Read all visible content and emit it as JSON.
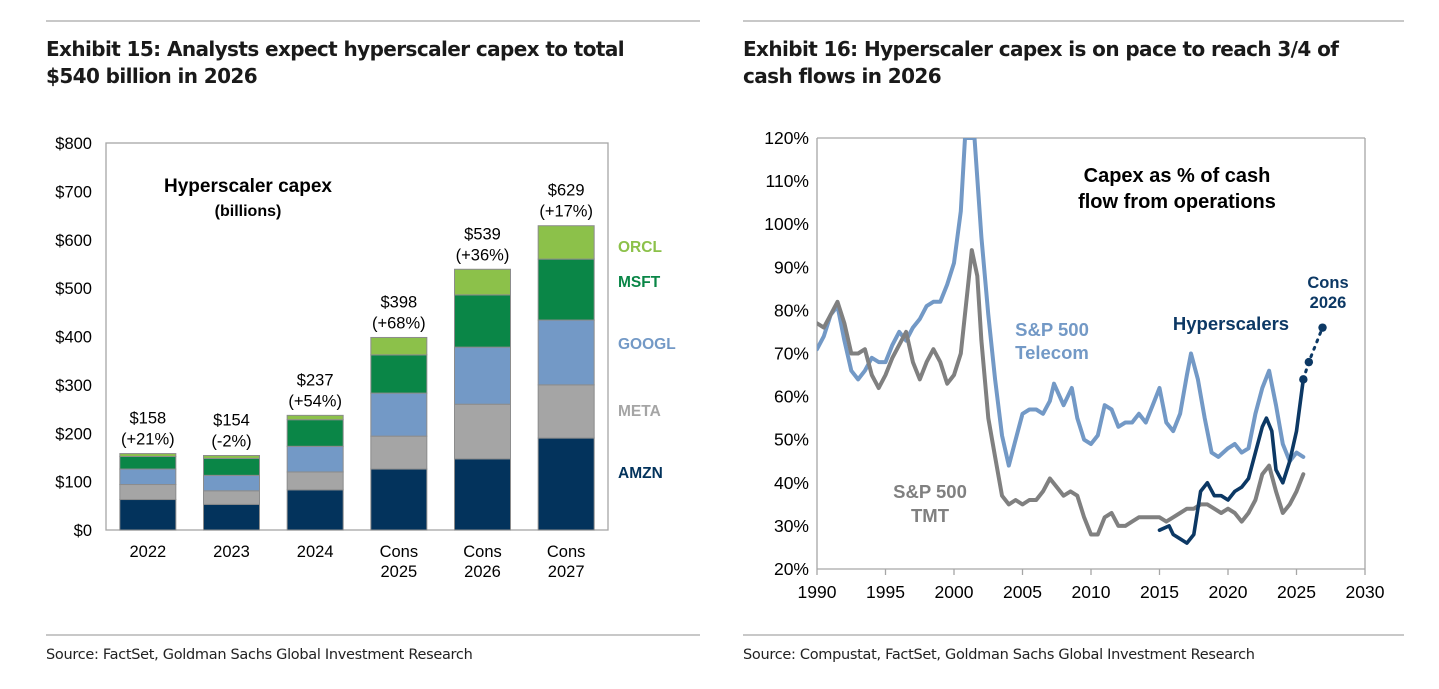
{
  "exhibits": [
    {
      "title_line1": "Exhibit 15: Analysts expect hyperscaler capex to total",
      "title_line2": "$540 billion in 2026",
      "source": "Source: FactSet, Goldman Sachs Global Investment Research"
    },
    {
      "title_line1": "Exhibit 16: Hyperscaler capex is on pace to reach 3/4 of",
      "title_line2": "cash flows in 2026",
      "source": "Source: Compustat, FactSet, Goldman Sachs Global Investment Research"
    }
  ],
  "chart_data": [
    {
      "type": "bar",
      "stacked": true,
      "title": "Hyperscaler capex",
      "subtitle": "(billions)",
      "xlabel": "",
      "ylabel": "",
      "ylim": [
        0,
        800
      ],
      "y_ticks": [
        0,
        100,
        200,
        300,
        400,
        500,
        600,
        700,
        800
      ],
      "y_tick_labels": [
        "$0",
        "$100",
        "$200",
        "$300",
        "$400",
        "$500",
        "$600",
        "$700",
        "$800"
      ],
      "categories": [
        [
          "2022"
        ],
        [
          "2023"
        ],
        [
          "2024"
        ],
        [
          "Cons",
          "2025"
        ],
        [
          "Cons",
          "2026"
        ],
        [
          "Cons",
          "2027"
        ]
      ],
      "series": [
        {
          "name": "AMZN",
          "color": "#03335c",
          "values": [
            63,
            53,
            83,
            126,
            147,
            190
          ]
        },
        {
          "name": "META",
          "color": "#a5a5a5",
          "values": [
            31,
            28,
            37,
            68,
            113,
            110
          ]
        },
        {
          "name": "GOOGL",
          "color": "#7399c6",
          "values": [
            32,
            32,
            53,
            89,
            118,
            134
          ]
        },
        {
          "name": "MSFT",
          "color": "#0a8647",
          "values": [
            26,
            35,
            55,
            79,
            108,
            126
          ]
        },
        {
          "name": "ORCL",
          "color": "#8cc14a",
          "values": [
            6,
            6,
            9,
            36,
            53,
            69
          ]
        }
      ],
      "totals": [
        158,
        154,
        237,
        398,
        539,
        629
      ],
      "total_labels": [
        "$158",
        "$154",
        "$237",
        "$398",
        "$539",
        "$629"
      ],
      "growth_labels": [
        "(+21%)",
        "(-2%)",
        "(+54%)",
        "(+68%)",
        "(+36%)",
        "(+17%)"
      ],
      "legend": [
        "ORCL",
        "MSFT",
        "GOOGL",
        "META",
        "AMZN"
      ],
      "legend_placement": "right",
      "grid": false
    },
    {
      "type": "line",
      "title": "Capex as % of cash",
      "title_line2": "flow from operations",
      "xlabel": "",
      "ylabel": "",
      "xlim": [
        1990,
        2030
      ],
      "ylim": [
        20,
        120
      ],
      "x_ticks": [
        1990,
        1995,
        2000,
        2005,
        2010,
        2015,
        2020,
        2025,
        2030
      ],
      "y_ticks": [
        20,
        30,
        40,
        50,
        60,
        70,
        80,
        90,
        100,
        110,
        120
      ],
      "y_tick_labels": [
        "20%",
        "30%",
        "40%",
        "50%",
        "60%",
        "70%",
        "80%",
        "90%",
        "100%",
        "110%",
        "120%"
      ],
      "grid": false,
      "series": [
        {
          "name": "S&P 500 Telecom",
          "label_line1": "S&P 500",
          "label_line2": "Telecom",
          "color": "#7399c6",
          "points": [
            [
              1990,
              71
            ],
            [
              1990.5,
              74
            ],
            [
              1991,
              79
            ],
            [
              1991.5,
              81
            ],
            [
              1992,
              73
            ],
            [
              1992.5,
              66
            ],
            [
              1993,
              64
            ],
            [
              1993.5,
              66
            ],
            [
              1994,
              69
            ],
            [
              1994.5,
              68
            ],
            [
              1995,
              68
            ],
            [
              1995.5,
              72
            ],
            [
              1996,
              75
            ],
            [
              1996.5,
              73
            ],
            [
              1997,
              76
            ],
            [
              1997.5,
              78
            ],
            [
              1998,
              81
            ],
            [
              1998.5,
              82
            ],
            [
              1999,
              82
            ],
            [
              1999.5,
              86
            ],
            [
              2000,
              91
            ],
            [
              2000.5,
              103
            ],
            [
              2000.8,
              120
            ],
            [
              2001.5,
              120
            ],
            [
              2002,
              97
            ],
            [
              2002.5,
              79
            ],
            [
              2003,
              64
            ],
            [
              2003.5,
              51
            ],
            [
              2004,
              44
            ],
            [
              2004.5,
              50
            ],
            [
              2005,
              56
            ],
            [
              2005.5,
              57
            ],
            [
              2006,
              57
            ],
            [
              2006.5,
              56
            ],
            [
              2007,
              59
            ],
            [
              2007.3,
              63
            ],
            [
              2008,
              58
            ],
            [
              2008.6,
              62
            ],
            [
              2009,
              55
            ],
            [
              2009.5,
              50
            ],
            [
              2010,
              49
            ],
            [
              2010.5,
              51
            ],
            [
              2011,
              58
            ],
            [
              2011.5,
              57
            ],
            [
              2012,
              53
            ],
            [
              2012.5,
              54
            ],
            [
              2013,
              54
            ],
            [
              2013.5,
              56
            ],
            [
              2014,
              54
            ],
            [
              2014.5,
              58
            ],
            [
              2015,
              62
            ],
            [
              2015.5,
              54
            ],
            [
              2016,
              52
            ],
            [
              2016.5,
              56
            ],
            [
              2017,
              65
            ],
            [
              2017.3,
              70
            ],
            [
              2017.8,
              64
            ],
            [
              2018.3,
              55
            ],
            [
              2018.8,
              47
            ],
            [
              2019.3,
              46
            ],
            [
              2020,
              48
            ],
            [
              2020.5,
              49
            ],
            [
              2021,
              47
            ],
            [
              2021.5,
              48
            ],
            [
              2022,
              56
            ],
            [
              2022.5,
              62
            ],
            [
              2023,
              66
            ],
            [
              2023.5,
              58
            ],
            [
              2024,
              49
            ],
            [
              2024.5,
              45
            ],
            [
              2025,
              47
            ],
            [
              2025.5,
              46
            ]
          ]
        },
        {
          "name": "S&P 500 TMT",
          "label_line1": "S&P 500",
          "label_line2": "TMT",
          "color": "#808080",
          "points": [
            [
              1990,
              77
            ],
            [
              1990.5,
              76
            ],
            [
              1991,
              79
            ],
            [
              1991.5,
              82
            ],
            [
              1992,
              77
            ],
            [
              1992.5,
              70
            ],
            [
              1993,
              70
            ],
            [
              1993.5,
              71
            ],
            [
              1994,
              65
            ],
            [
              1994.5,
              62
            ],
            [
              1995,
              65
            ],
            [
              1995.5,
              69
            ],
            [
              1996,
              72
            ],
            [
              1996.5,
              75
            ],
            [
              1997,
              68
            ],
            [
              1997.5,
              64
            ],
            [
              1998,
              68
            ],
            [
              1998.5,
              71
            ],
            [
              1999,
              68
            ],
            [
              1999.5,
              63
            ],
            [
              2000,
              65
            ],
            [
              2000.5,
              70
            ],
            [
              2001,
              85
            ],
            [
              2001.3,
              94
            ],
            [
              2001.7,
              88
            ],
            [
              2002,
              73
            ],
            [
              2002.5,
              55
            ],
            [
              2003,
              46
            ],
            [
              2003.5,
              37
            ],
            [
              2004,
              35
            ],
            [
              2004.5,
              36
            ],
            [
              2005,
              35
            ],
            [
              2005.5,
              36
            ],
            [
              2006,
              36
            ],
            [
              2006.5,
              38
            ],
            [
              2007,
              41
            ],
            [
              2007.5,
              39
            ],
            [
              2008,
              37
            ],
            [
              2008.5,
              38
            ],
            [
              2009,
              37
            ],
            [
              2009.5,
              32
            ],
            [
              2010,
              28
            ],
            [
              2010.5,
              28
            ],
            [
              2011,
              32
            ],
            [
              2011.5,
              33
            ],
            [
              2012,
              30
            ],
            [
              2012.5,
              30
            ],
            [
              2013,
              31
            ],
            [
              2013.5,
              32
            ],
            [
              2014,
              32
            ],
            [
              2014.5,
              32
            ],
            [
              2015,
              32
            ],
            [
              2015.5,
              31
            ],
            [
              2016,
              32
            ],
            [
              2016.5,
              33
            ],
            [
              2017,
              34
            ],
            [
              2017.5,
              34
            ],
            [
              2018,
              35
            ],
            [
              2018.5,
              35
            ],
            [
              2019,
              34
            ],
            [
              2019.5,
              33
            ],
            [
              2020,
              34
            ],
            [
              2020.5,
              33
            ],
            [
              2021,
              31
            ],
            [
              2021.5,
              33
            ],
            [
              2022,
              36
            ],
            [
              2022.5,
              42
            ],
            [
              2023,
              44
            ],
            [
              2023.5,
              38
            ],
            [
              2024,
              33
            ],
            [
              2024.5,
              35
            ],
            [
              2025,
              38
            ],
            [
              2025.5,
              42
            ]
          ]
        },
        {
          "name": "Hyperscalers",
          "label_line1": "Hyperscalers",
          "color": "#0c3864",
          "points": [
            [
              2015,
              29
            ],
            [
              2015.7,
              30
            ],
            [
              2016,
              28
            ],
            [
              2016.5,
              27
            ],
            [
              2017,
              26
            ],
            [
              2017.5,
              28
            ],
            [
              2018,
              38
            ],
            [
              2018.5,
              40
            ],
            [
              2019,
              37
            ],
            [
              2019.5,
              37
            ],
            [
              2020,
              36
            ],
            [
              2020.5,
              38
            ],
            [
              2021,
              39
            ],
            [
              2021.5,
              41
            ],
            [
              2022,
              47
            ],
            [
              2022.5,
              53
            ],
            [
              2022.8,
              55
            ],
            [
              2023.2,
              52
            ],
            [
              2023.5,
              43
            ],
            [
              2024,
              40
            ],
            [
              2024.5,
              45
            ],
            [
              2025,
              52
            ],
            [
              2025.5,
              64
            ]
          ],
          "forecast_points": [
            [
              2025.5,
              64
            ],
            [
              2025.9,
              68
            ],
            [
              2026.9,
              76
            ]
          ],
          "forecast_label_line1": "Cons",
          "forecast_label_line2": "2026"
        }
      ]
    }
  ]
}
